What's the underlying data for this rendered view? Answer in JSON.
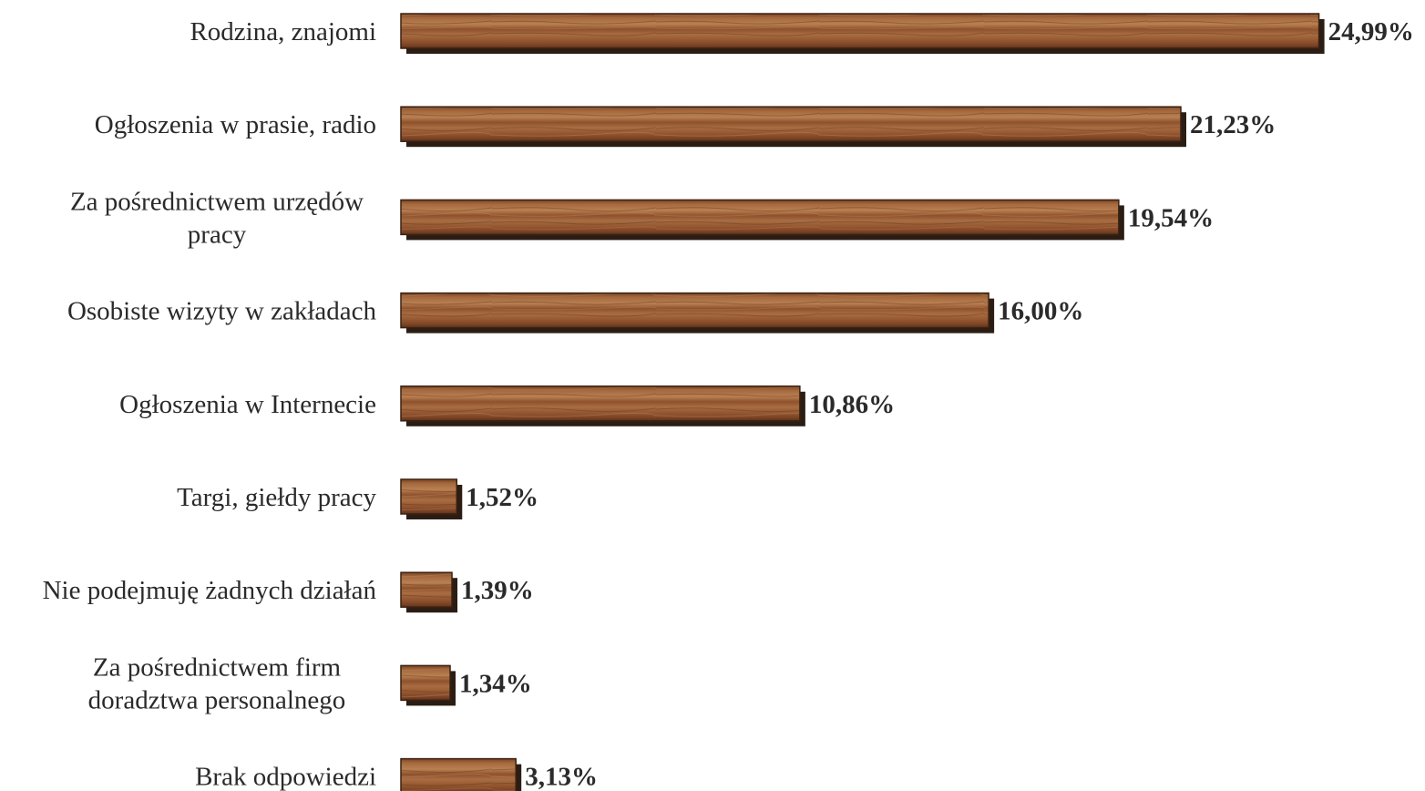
{
  "chart_data": {
    "type": "bar",
    "orientation": "horizontal",
    "categories": [
      [
        "Rodzina, znajomi"
      ],
      [
        "Ogłoszenia w prasie, radio"
      ],
      [
        "Za pośrednictwem urzędów",
        "pracy"
      ],
      [
        "Osobiste wizyty w zakładach"
      ],
      [
        "Ogłoszenia w Internecie"
      ],
      [
        "Targi, giełdy pracy"
      ],
      [
        "Nie podejmuję żadnych działań"
      ],
      [
        "Za pośrednictwem firm",
        "doradztwa personalnego"
      ],
      [
        "Brak odpowiedzi"
      ]
    ],
    "values": [
      24.99,
      21.23,
      19.54,
      16.0,
      10.86,
      1.52,
      1.39,
      1.34,
      3.13
    ],
    "value_labels": [
      "24,99%",
      "21,23%",
      "19,54%",
      "16,00%",
      "10,86%",
      "1,52%",
      "1,39%",
      "1,34%",
      "3,13%"
    ],
    "xlim": [
      0,
      25
    ],
    "grid": false,
    "legend": "none",
    "bar_texture": "wood",
    "colors": {
      "bar_base": "#9a5a32",
      "bar_light": "#b47a4e",
      "bar_dark": "#6e3a1c",
      "shadow": "#2b1d14",
      "text": "#2a2a2a"
    }
  }
}
